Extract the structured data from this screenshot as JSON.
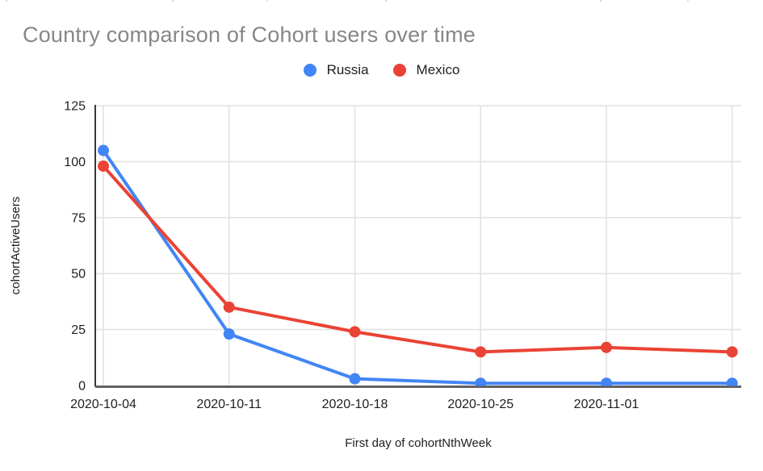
{
  "page": {
    "background": "#ffffff"
  },
  "chart_data": {
    "type": "line",
    "title": "Country comparison of Cohort users over time",
    "xlabel": "First day of cohortNthWeek",
    "ylabel": "cohortActiveUsers",
    "categories": [
      "2020-10-04",
      "2020-10-11",
      "2020-10-18",
      "2020-10-25",
      "2020-11-01",
      ""
    ],
    "series": [
      {
        "name": "Russia",
        "color": "#4285F4",
        "values": [
          105,
          23,
          3,
          1,
          1,
          1
        ]
      },
      {
        "name": "Mexico",
        "color": "#EA4335",
        "values": [
          98,
          35,
          24,
          15,
          17,
          15
        ]
      }
    ],
    "ylim": [
      0,
      125
    ],
    "y_ticks": [
      0,
      25,
      50,
      75,
      100,
      125
    ],
    "grid": true,
    "legend_position": "top-center",
    "colors": {
      "title_text": "#878787",
      "tick_text": "#1f1f1f",
      "axis_title_text": "#202124",
      "gridline": "#e2e2e2",
      "y_axis_line": "#37383a",
      "x_axis_line": "#616161",
      "legend_text": "#212121"
    }
  }
}
